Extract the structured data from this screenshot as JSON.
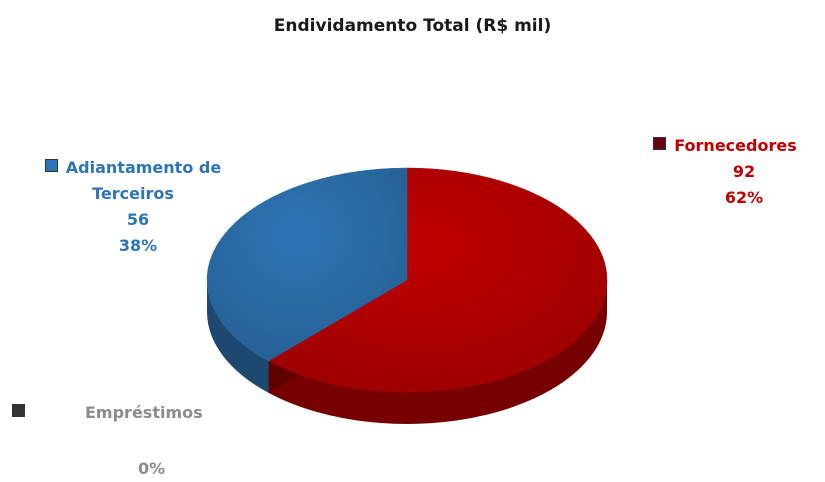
{
  "chart_data": {
    "type": "pie",
    "title": "Endividamento Total (R$ mil)",
    "slices": [
      {
        "name": "Fornecedores",
        "value_text": "92",
        "percent_text": "62%",
        "value": 92,
        "color": "#c00000"
      },
      {
        "name": "Adiantamento de Terceiros",
        "value_text": "56",
        "percent_text": "38%",
        "value": 56,
        "color": "#2e75b6"
      },
      {
        "name": "Empréstimos",
        "value_text": "",
        "percent_text": "0%",
        "value": 0,
        "color": "#808080"
      }
    ]
  }
}
